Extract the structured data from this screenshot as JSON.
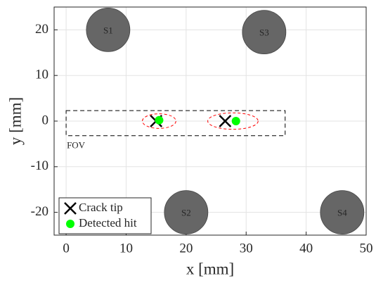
{
  "chart_data": {
    "type": "scatter",
    "xlabel": "x [mm]",
    "ylabel": "y [mm]",
    "xlim": [
      -2,
      50
    ],
    "ylim": [
      -25,
      25
    ],
    "xticks": [
      0,
      10,
      20,
      30,
      40,
      50
    ],
    "yticks": [
      -20,
      -10,
      0,
      10,
      20
    ],
    "grid": true,
    "legend": "lower left",
    "sensors": {
      "color": "#666666",
      "labels": [
        "S1",
        "S2",
        "S3",
        "S4"
      ],
      "x": [
        7,
        20,
        33,
        46
      ],
      "y": [
        20,
        -20,
        19.5,
        -20
      ]
    },
    "series": [
      {
        "name": "Crack tip",
        "color": "#000000",
        "marker": "x",
        "x": [
          15,
          26.5
        ],
        "y": [
          0,
          0
        ]
      },
      {
        "name": "Detected hit",
        "color": "#00ff00",
        "marker": "o",
        "x": [
          15.5,
          28.3
        ],
        "y": [
          0.2,
          0
        ]
      }
    ],
    "fov": {
      "label": "FOV",
      "x": [
        0,
        36.5
      ],
      "y": [
        -3.2,
        2.3
      ]
    },
    "ellipses": {
      "color": "#ff0000",
      "x": [
        15.5,
        27.8
      ],
      "y": [
        0,
        0
      ],
      "rx": [
        2.8,
        4.2
      ],
      "ry": [
        1.6,
        1.8
      ]
    }
  }
}
